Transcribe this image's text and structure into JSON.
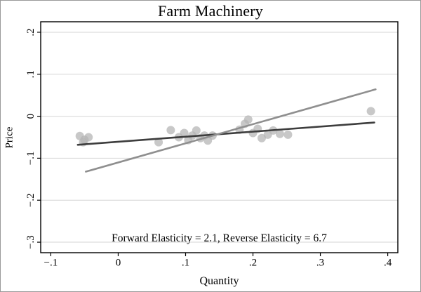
{
  "chart_data": {
    "type": "scatter",
    "title": "Farm Machinery",
    "xlabel": "Quantity",
    "ylabel": "Price",
    "annotation": "Forward Elasticity = 2.1, Reverse Elasticity = 6.7",
    "xlim": [
      -0.115,
      0.415
    ],
    "ylim": [
      -0.325,
      0.225
    ],
    "x_ticks": [
      -0.1,
      0,
      0.1,
      0.2,
      0.3,
      0.4
    ],
    "x_tick_labels": [
      "−.1",
      "0",
      ".1",
      ".2",
      ".3",
      ".4"
    ],
    "y_ticks": [
      -0.3,
      -0.2,
      -0.1,
      0,
      0.1,
      0.2
    ],
    "y_tick_labels": [
      "−.3",
      "−.2",
      "−.1",
      "0",
      ".1",
      ".2"
    ],
    "grid": "horizontal",
    "legend": "none",
    "points": [
      [
        -0.057,
        -0.047
      ],
      [
        -0.05,
        -0.056
      ],
      [
        -0.044,
        -0.05
      ],
      [
        -0.052,
        -0.062
      ],
      [
        0.06,
        -0.062
      ],
      [
        0.078,
        -0.033
      ],
      [
        0.09,
        -0.05
      ],
      [
        0.098,
        -0.04
      ],
      [
        0.104,
        -0.057
      ],
      [
        0.11,
        -0.046
      ],
      [
        0.116,
        -0.034
      ],
      [
        0.122,
        -0.052
      ],
      [
        0.128,
        -0.046
      ],
      [
        0.133,
        -0.058
      ],
      [
        0.14,
        -0.046
      ],
      [
        0.18,
        -0.032
      ],
      [
        0.188,
        -0.018
      ],
      [
        0.193,
        -0.008
      ],
      [
        0.2,
        -0.04
      ],
      [
        0.207,
        -0.03
      ],
      [
        0.213,
        -0.052
      ],
      [
        0.222,
        -0.044
      ],
      [
        0.23,
        -0.034
      ],
      [
        0.24,
        -0.042
      ],
      [
        0.252,
        -0.044
      ],
      [
        0.375,
        0.012
      ]
    ],
    "lines": [
      {
        "name": "reverse-elasticity-fit-line",
        "color": "#3d3d3d",
        "x": [
          -0.06,
          0.38
        ],
        "y": [
          -0.068,
          -0.015
        ]
      },
      {
        "name": "forward-elasticity-fit-line",
        "color": "#8f8f8f",
        "x": [
          -0.048,
          0.382
        ],
        "y": [
          -0.132,
          0.064
        ]
      }
    ],
    "style": {
      "point_color": "#b6b6b6",
      "point_opacity": 0.75,
      "grid_color": "#d6d6d6",
      "frame_color": "#000000",
      "text_color": "#000000"
    }
  }
}
